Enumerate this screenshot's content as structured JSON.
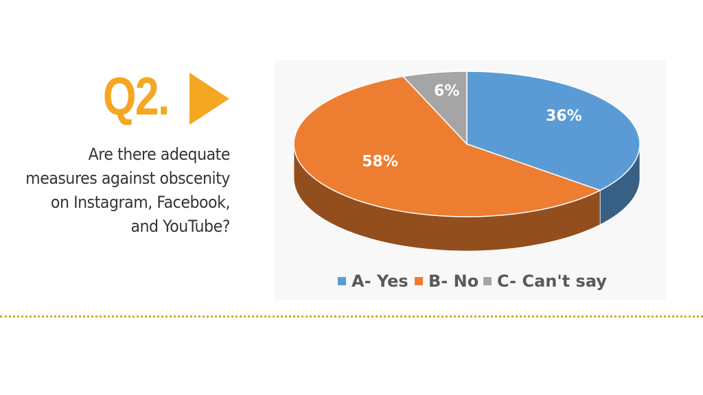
{
  "heading": "Q2.",
  "question": "Are there adequate measures against obscenity on Instagram, Facebook, and YouTube?",
  "chart_data": {
    "type": "pie",
    "categories": [
      "A- Yes",
      "B- No",
      "C- Can't say"
    ],
    "values": [
      36,
      58,
      6
    ],
    "value_labels": [
      "36%",
      "58%",
      "6%"
    ],
    "colors": [
      "#5b9bd5",
      "#ed7d31",
      "#a5a5a5"
    ],
    "legend": "bottom"
  }
}
